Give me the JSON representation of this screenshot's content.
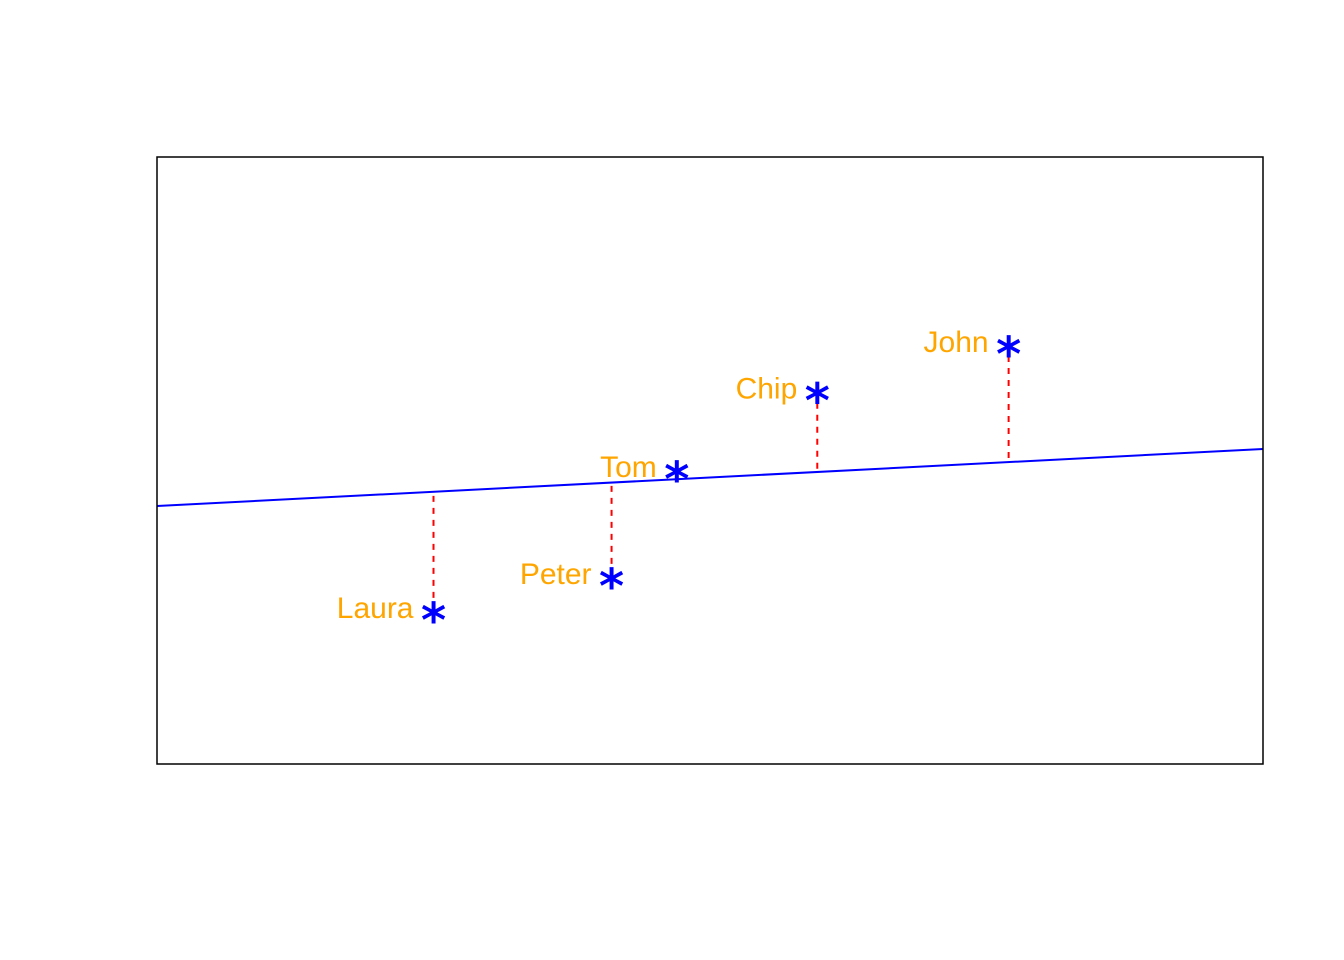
{
  "chart_data": {
    "type": "scatter",
    "title": "",
    "xlabel": "",
    "ylabel": "",
    "xlim": [
      0,
      10
    ],
    "ylim": [
      0,
      10
    ],
    "axes_visible": false,
    "grid": false,
    "legend": "none",
    "marker": "*",
    "colors": {
      "marker": "#0000ff",
      "label": "#ffa500",
      "regression_line": "#0000ff",
      "residual": "#ff0000",
      "frame": "#000000"
    },
    "points": [
      {
        "name": "Laura",
        "x": 2.5,
        "y": 2.54
      },
      {
        "name": "Peter",
        "x": 4.11,
        "y": 3.1
      },
      {
        "name": "Tom",
        "x": 4.7,
        "y": 4.86
      },
      {
        "name": "Chip",
        "x": 5.97,
        "y": 6.15
      },
      {
        "name": "John",
        "x": 7.7,
        "y": 6.92
      }
    ],
    "regression_line": {
      "intercept": 4.25,
      "slope": 0.094
    }
  }
}
